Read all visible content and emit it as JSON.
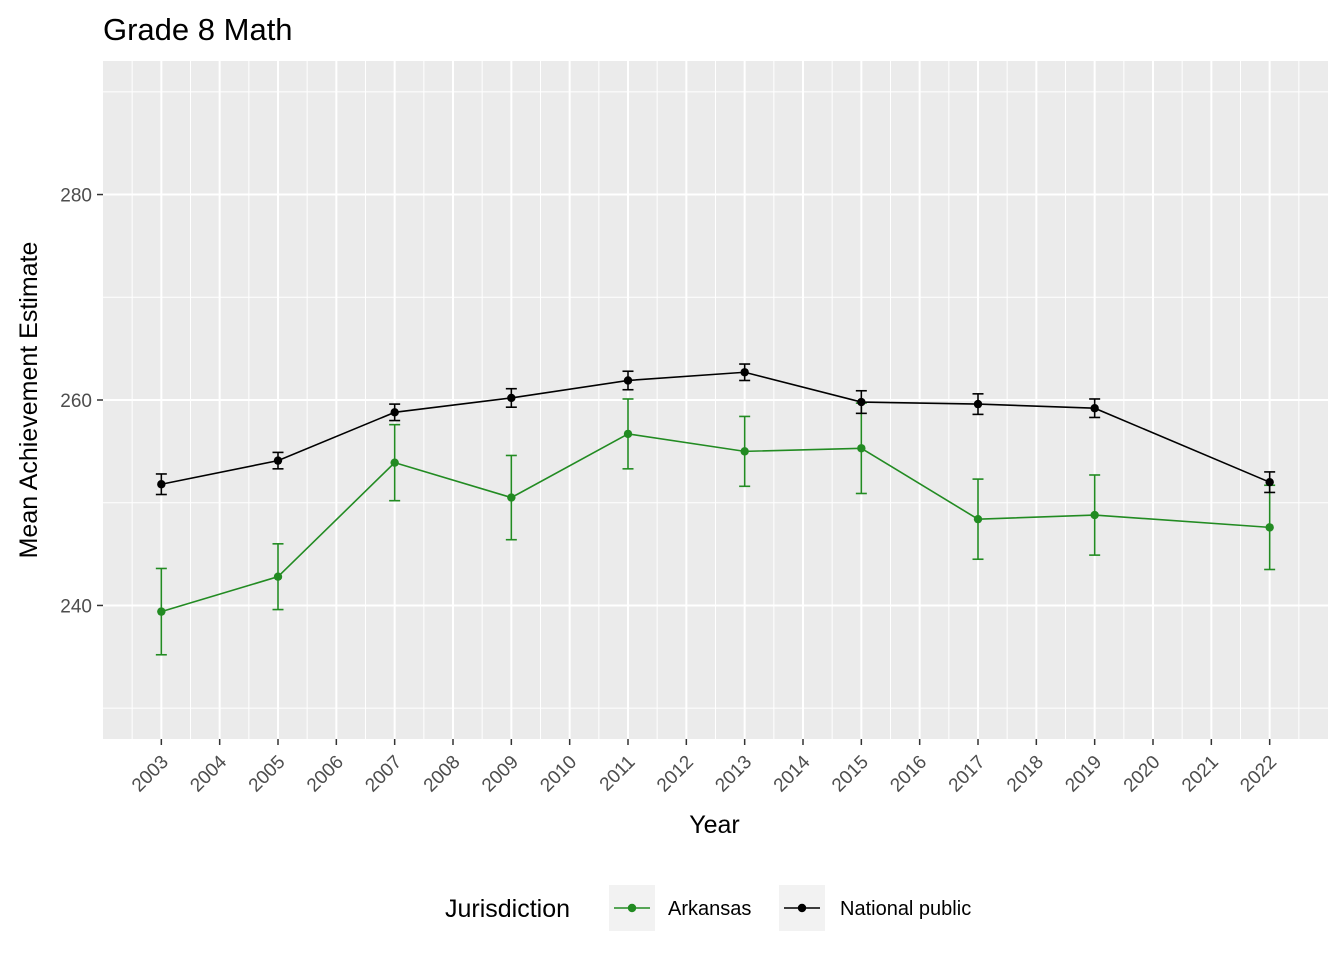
{
  "chart_data": {
    "type": "line",
    "title": "Grade 8 Math",
    "xlabel": "Year",
    "ylabel": "Mean Achievement Estimate",
    "x_ticks": [
      2003,
      2004,
      2005,
      2006,
      2007,
      2008,
      2009,
      2010,
      2011,
      2012,
      2013,
      2014,
      2015,
      2016,
      2017,
      2018,
      2019,
      2020,
      2021,
      2022
    ],
    "xlim": [
      2002,
      2023
    ],
    "y_ticks": [
      240,
      260,
      280
    ],
    "ylim": [
      227,
      293
    ],
    "grid": true,
    "legend": {
      "title": "Jurisdiction",
      "position": "bottom"
    },
    "series": [
      {
        "name": "Arkansas",
        "color": "#228B22",
        "points": [
          {
            "x": 2003,
            "y": 239.4,
            "lo": 235.2,
            "hi": 243.6
          },
          {
            "x": 2005,
            "y": 242.8,
            "lo": 239.6,
            "hi": 246.0
          },
          {
            "x": 2007,
            "y": 253.9,
            "lo": 250.2,
            "hi": 257.6
          },
          {
            "x": 2009,
            "y": 250.5,
            "lo": 246.4,
            "hi": 254.6
          },
          {
            "x": 2011,
            "y": 256.7,
            "lo": 253.3,
            "hi": 260.1
          },
          {
            "x": 2013,
            "y": 255.0,
            "lo": 251.6,
            "hi": 258.4
          },
          {
            "x": 2015,
            "y": 255.3,
            "lo": 250.9,
            "hi": 259.7
          },
          {
            "x": 2017,
            "y": 248.4,
            "lo": 244.5,
            "hi": 252.3
          },
          {
            "x": 2019,
            "y": 248.8,
            "lo": 244.9,
            "hi": 252.7
          },
          {
            "x": 2022,
            "y": 247.6,
            "lo": 243.5,
            "hi": 251.7
          }
        ]
      },
      {
        "name": "National public",
        "color": "#000000",
        "points": [
          {
            "x": 2003,
            "y": 251.8,
            "lo": 250.8,
            "hi": 252.8
          },
          {
            "x": 2005,
            "y": 254.1,
            "lo": 253.3,
            "hi": 254.9
          },
          {
            "x": 2007,
            "y": 258.8,
            "lo": 258.0,
            "hi": 259.6
          },
          {
            "x": 2009,
            "y": 260.2,
            "lo": 259.3,
            "hi": 261.1
          },
          {
            "x": 2011,
            "y": 261.9,
            "lo": 261.0,
            "hi": 262.8
          },
          {
            "x": 2013,
            "y": 262.7,
            "lo": 261.9,
            "hi": 263.5
          },
          {
            "x": 2015,
            "y": 259.8,
            "lo": 258.7,
            "hi": 260.9
          },
          {
            "x": 2017,
            "y": 259.6,
            "lo": 258.6,
            "hi": 260.6
          },
          {
            "x": 2019,
            "y": 259.2,
            "lo": 258.3,
            "hi": 260.1
          },
          {
            "x": 2022,
            "y": 252.0,
            "lo": 251.0,
            "hi": 253.0
          }
        ]
      }
    ]
  }
}
